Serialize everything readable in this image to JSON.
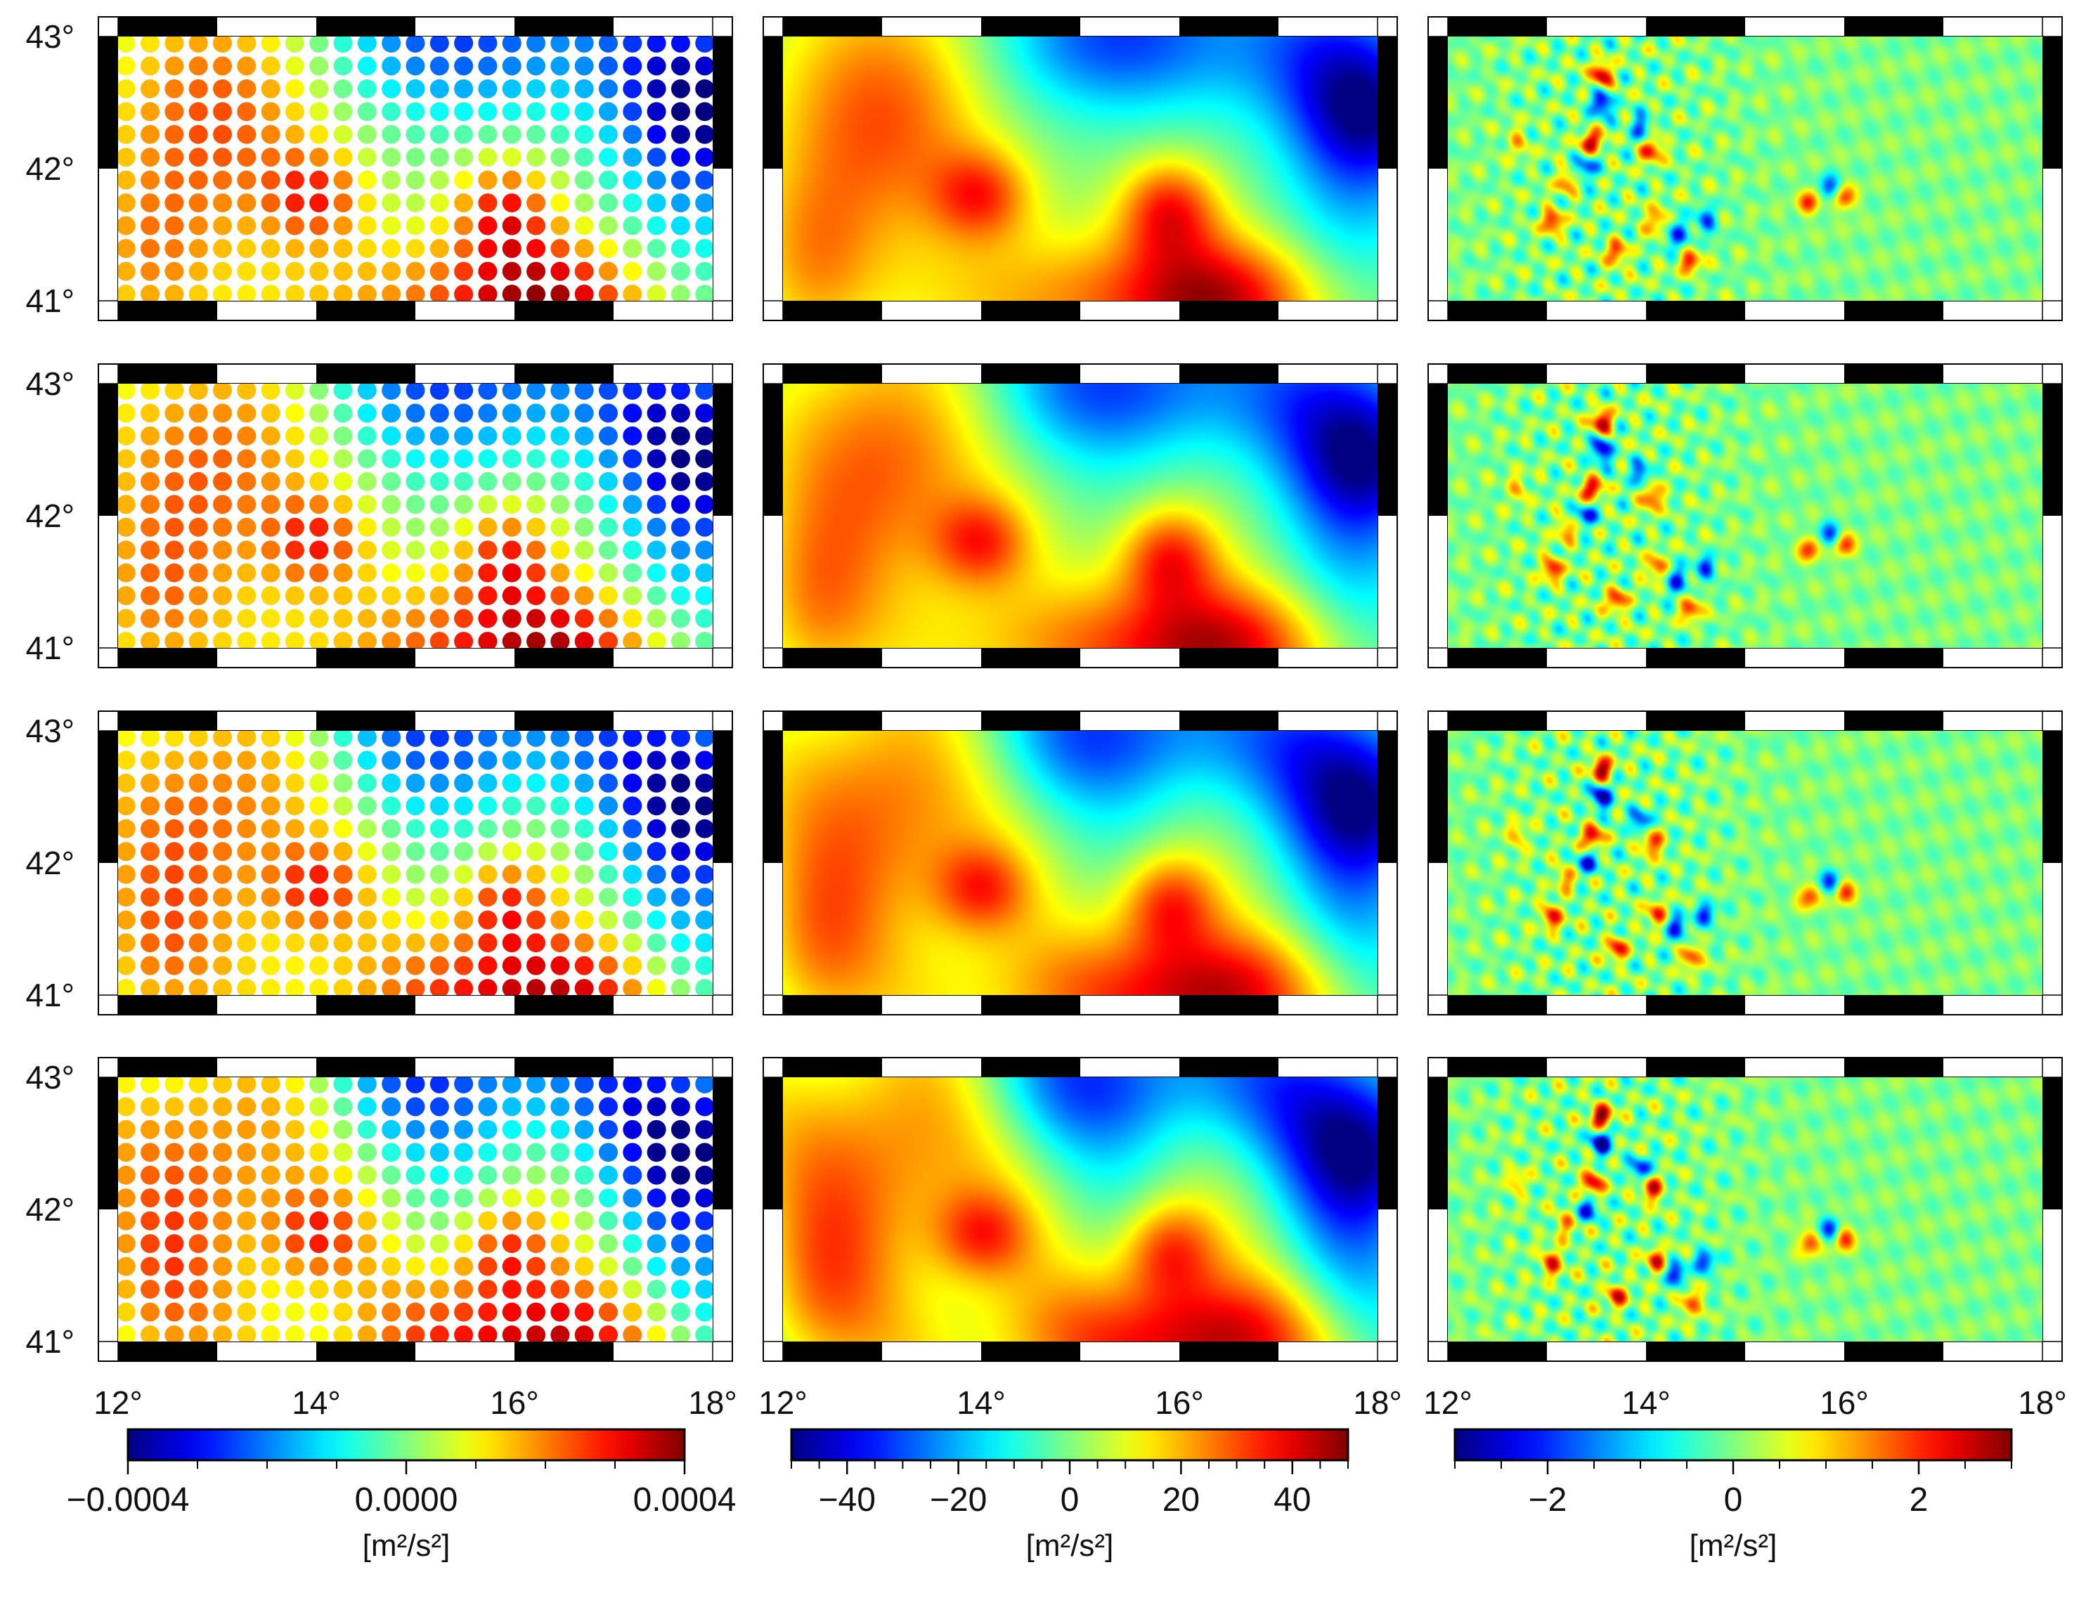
{
  "chart_data": {
    "type": "heatmap",
    "title": "",
    "lon_ticks": [
      12,
      14,
      16,
      18
    ],
    "lat_ticks": [
      41,
      42,
      43
    ],
    "lon_tick_labels": [
      "12°",
      "14°",
      "16°",
      "18°"
    ],
    "lat_tick_labels": [
      "41°",
      "42°",
      "43°"
    ],
    "xlim": [
      12,
      18
    ],
    "ylim": [
      41,
      43
    ],
    "grid": false,
    "rows": 4,
    "columns": [
      {
        "kind": "point-grid",
        "colorbar": {
          "min": -0.0004,
          "max": 0.0004,
          "ticks": [
            -0.0004,
            0.0,
            0.0004
          ],
          "tick_labels": [
            "−0.0004",
            "0.0000",
            "0.0004"
          ],
          "unit": "[m²/s²]"
        }
      },
      {
        "kind": "smooth-field",
        "colorbar": {
          "min": -50,
          "max": 50,
          "ticks": [
            -40,
            -20,
            0,
            20,
            40
          ],
          "tick_labels": [
            "−40",
            "−20",
            "0",
            "20",
            "40"
          ],
          "unit": "[m²/s²]"
        }
      },
      {
        "kind": "residual-field",
        "colorbar": {
          "min": -3,
          "max": 3,
          "ticks": [
            -2,
            0,
            2
          ],
          "tick_labels": [
            "−2",
            "0",
            "2"
          ],
          "unit": "[m²/s²]"
        }
      }
    ],
    "colormap": "jet",
    "field_features": [
      {
        "name": "west-high",
        "lon": 13.0,
        "lat": 42.5,
        "value": 40
      },
      {
        "name": "high-14",
        "lon": 14.0,
        "lat": 41.8,
        "value": 40
      },
      {
        "name": "high-16",
        "lon": 15.9,
        "lat": 41.7,
        "value": 40
      },
      {
        "name": "southeast-high",
        "lon": 16.5,
        "lat": 41.0,
        "value": 45
      },
      {
        "name": "northeast-low",
        "lon": 17.8,
        "lat": 42.4,
        "value": -45
      },
      {
        "name": "north-low",
        "lon": 15.5,
        "lat": 43.0,
        "value": -35
      }
    ],
    "residual_features": [
      {
        "lon": 13.55,
        "lat": 42.7,
        "value": 2.8
      },
      {
        "lon": 13.55,
        "lat": 42.5,
        "value": -2.8
      },
      {
        "lon": 13.45,
        "lat": 42.2,
        "value": 2.5
      },
      {
        "lon": 14.05,
        "lat": 42.15,
        "value": 2.5
      },
      {
        "lon": 13.95,
        "lat": 42.3,
        "value": -2.0
      },
      {
        "lon": 13.05,
        "lat": 41.6,
        "value": 2.2
      },
      {
        "lon": 14.1,
        "lat": 41.6,
        "value": 2.0
      },
      {
        "lon": 14.3,
        "lat": 41.5,
        "value": -2.2
      },
      {
        "lon": 15.65,
        "lat": 41.75,
        "value": 2.0
      },
      {
        "lon": 15.85,
        "lat": 41.85,
        "value": -2.0
      },
      {
        "lon": 16.0,
        "lat": 41.78,
        "value": 2.0
      },
      {
        "lon": 13.4,
        "lat": 42.0,
        "value": -2.0
      },
      {
        "lon": 13.2,
        "lat": 41.9,
        "value": 1.5
      },
      {
        "lon": 14.45,
        "lat": 41.3,
        "value": 2.0
      },
      {
        "lon": 12.7,
        "lat": 42.2,
        "value": 1.2
      },
      {
        "lon": 13.7,
        "lat": 41.35,
        "value": 2.0
      },
      {
        "lon": 14.6,
        "lat": 41.6,
        "value": -1.8
      }
    ]
  }
}
